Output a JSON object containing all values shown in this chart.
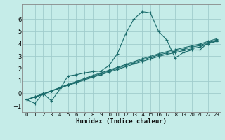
{
  "xlabel": "Humidex (Indice chaleur)",
  "ylabel": "",
  "bg_color": "#c5ece8",
  "grid_color": "#a0cccc",
  "line_color": "#1a6b6b",
  "xlim": [
    -0.5,
    23.5
  ],
  "ylim": [
    -1.5,
    7.2
  ],
  "yticks": [
    -1,
    0,
    1,
    2,
    3,
    4,
    5,
    6
  ],
  "xticks": [
    0,
    1,
    2,
    3,
    4,
    5,
    6,
    7,
    8,
    9,
    10,
    11,
    12,
    13,
    14,
    15,
    16,
    17,
    18,
    19,
    20,
    21,
    22,
    23
  ],
  "curve1_x": [
    0,
    1,
    2,
    3,
    4,
    5,
    6,
    7,
    8,
    9,
    10,
    11,
    12,
    13,
    14,
    15,
    16,
    17,
    18,
    19,
    20,
    21,
    22,
    23
  ],
  "curve1_y": [
    -0.5,
    -0.8,
    0.0,
    -0.6,
    0.3,
    1.4,
    1.5,
    1.65,
    1.75,
    1.8,
    2.25,
    3.2,
    4.8,
    6.0,
    6.6,
    6.5,
    5.0,
    4.3,
    2.85,
    3.3,
    3.5,
    3.5,
    4.1,
    4.2
  ],
  "curve2_x": [
    0,
    1,
    2,
    3,
    4,
    5,
    6,
    7,
    8,
    9,
    10,
    11,
    12,
    13,
    14,
    15,
    16,
    17,
    18,
    19,
    20,
    21,
    22,
    23
  ],
  "curve2_y": [
    -0.5,
    -0.3,
    -0.1,
    0.2,
    0.4,
    0.65,
    0.85,
    1.08,
    1.3,
    1.5,
    1.72,
    1.93,
    2.15,
    2.37,
    2.58,
    2.78,
    2.98,
    3.15,
    3.3,
    3.45,
    3.6,
    3.75,
    4.0,
    4.2
  ],
  "curve3_x": [
    0,
    1,
    2,
    3,
    4,
    5,
    6,
    7,
    8,
    9,
    10,
    11,
    12,
    13,
    14,
    15,
    16,
    17,
    18,
    19,
    20,
    21,
    22,
    23
  ],
  "curve3_y": [
    -0.5,
    -0.28,
    -0.06,
    0.18,
    0.42,
    0.68,
    0.9,
    1.14,
    1.37,
    1.58,
    1.8,
    2.02,
    2.25,
    2.47,
    2.7,
    2.9,
    3.1,
    3.27,
    3.42,
    3.57,
    3.72,
    3.87,
    4.1,
    4.3
  ],
  "curve4_x": [
    0,
    1,
    2,
    3,
    4,
    5,
    6,
    7,
    8,
    9,
    10,
    11,
    12,
    13,
    14,
    15,
    16,
    17,
    18,
    19,
    20,
    21,
    22,
    23
  ],
  "curve4_y": [
    -0.5,
    -0.27,
    -0.03,
    0.22,
    0.46,
    0.72,
    0.95,
    1.2,
    1.44,
    1.65,
    1.88,
    2.1,
    2.33,
    2.56,
    2.79,
    2.99,
    3.2,
    3.37,
    3.52,
    3.68,
    3.83,
    3.98,
    4.2,
    4.4
  ]
}
